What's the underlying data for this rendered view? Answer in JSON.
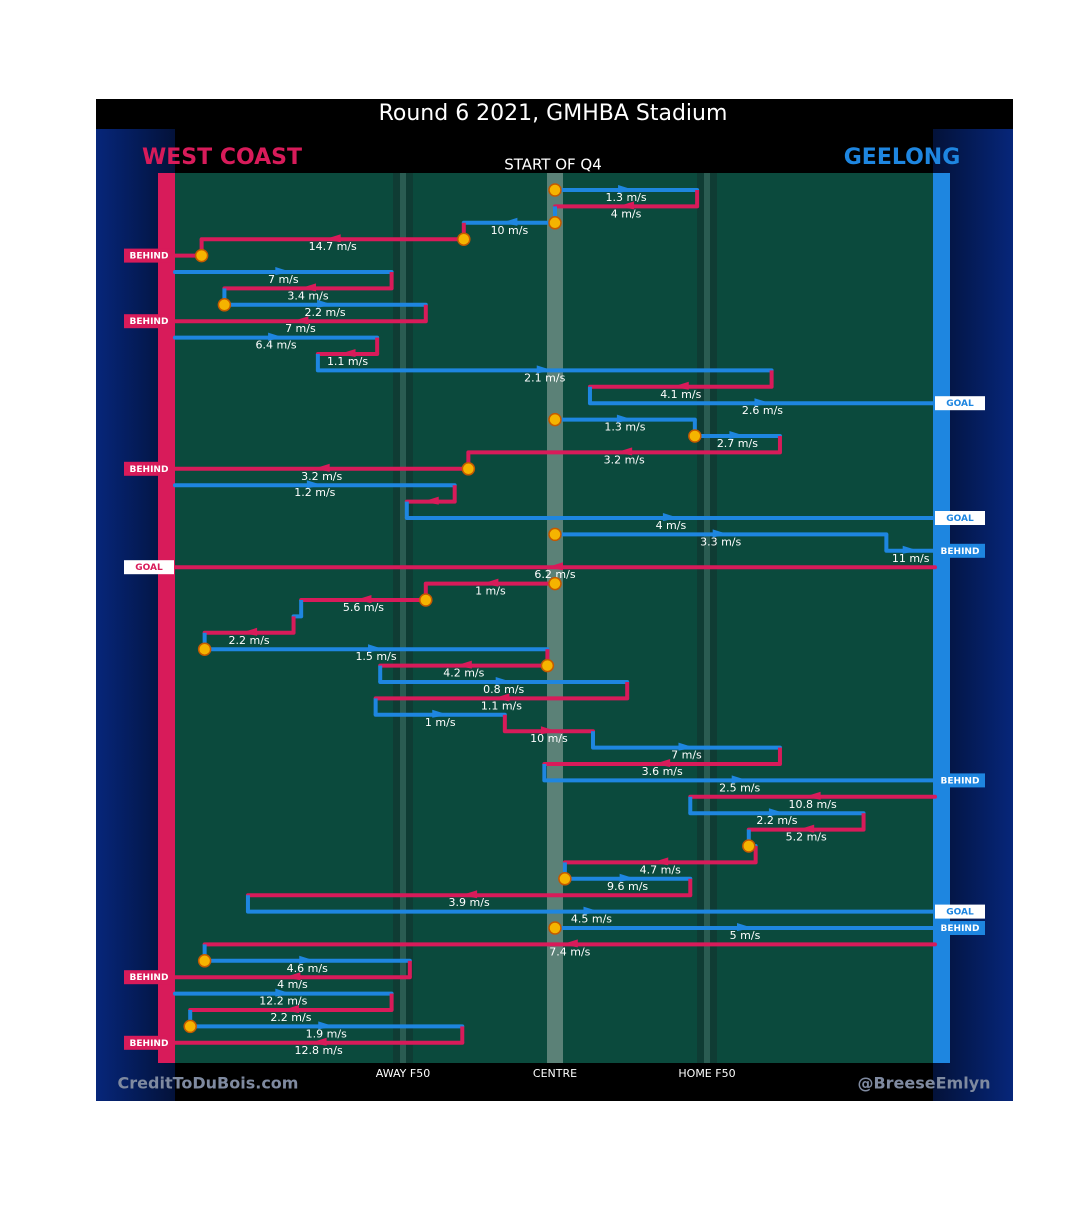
{
  "chart_data": {
    "type": "chain",
    "title": "Round 6 2021, GMHBA Stadium",
    "subtitle": "START OF Q4",
    "teams": [
      {
        "name": "WEST COAST",
        "color": "#d81b5a"
      },
      {
        "name": "GEELONG",
        "color": "#1e86e0"
      }
    ],
    "footer_left": "CreditToDuBois.com",
    "footer_right": "@BreeseEmlyn",
    "xlim": [
      0,
      100
    ],
    "xticks": [
      {
        "value": 30,
        "label": "AWAY F50"
      },
      {
        "value": 50,
        "label": "CENTRE"
      },
      {
        "value": 70,
        "label": "HOME F50"
      }
    ],
    "rows": [
      {
        "team": 1,
        "from": 50,
        "to": 68.7,
        "label": "1.3 m/s",
        "marker": true
      },
      {
        "team": 0,
        "from": 68.7,
        "to": 50,
        "label": "4 m/s"
      },
      {
        "team": 1,
        "from": 50,
        "to": 38,
        "label": "10 m/s",
        "marker": true
      },
      {
        "team": 0,
        "from": 38,
        "to": 3.5,
        "label": "14.7 m/s",
        "marker": true
      },
      {
        "team": 0,
        "from": 3.5,
        "to": 0,
        "outcome": "BEHIND",
        "marker": true
      },
      {
        "team": 1,
        "from": 0,
        "to": 28.5,
        "label": "7 m/s"
      },
      {
        "team": 0,
        "from": 28.5,
        "to": 6.5,
        "label": "3.4 m/s"
      },
      {
        "team": 1,
        "from": 6.5,
        "to": 33,
        "label": "2.2 m/s",
        "marker": true
      },
      {
        "team": 0,
        "from": 33,
        "to": 0,
        "label": "7 m/s",
        "outcome": "BEHIND"
      },
      {
        "team": 1,
        "from": 0,
        "to": 26.6,
        "label": "6.4 m/s"
      },
      {
        "team": 0,
        "from": 26.6,
        "to": 18.8,
        "label": "1.1 m/s"
      },
      {
        "team": 1,
        "from": 18.8,
        "to": 78.5,
        "label": "2.1 m/s"
      },
      {
        "team": 0,
        "from": 78.5,
        "to": 54.6,
        "label": "4.1 m/s"
      },
      {
        "team": 1,
        "from": 54.6,
        "to": 100,
        "label": "2.6 m/s",
        "outcome": "GOAL"
      },
      {
        "team": 1,
        "from": 50,
        "to": 68.4,
        "label": "1.3 m/s",
        "marker": true
      },
      {
        "team": 1,
        "from": 68.4,
        "to": 79.6,
        "label": "2.7 m/s",
        "marker": true
      },
      {
        "team": 0,
        "from": 79.6,
        "to": 38.6,
        "label": "3.2 m/s"
      },
      {
        "team": 0,
        "from": 38.6,
        "to": 0,
        "label": "3.2 m/s",
        "outcome": "BEHIND",
        "marker": true
      },
      {
        "team": 1,
        "from": 0,
        "to": 36.8,
        "label": "1.2 m/s"
      },
      {
        "team": 0,
        "from": 36.8,
        "to": 30.5
      },
      {
        "team": 1,
        "from": 30.5,
        "to": 100,
        "label": "4 m/s",
        "outcome": "GOAL"
      },
      {
        "team": 1,
        "from": 50,
        "to": 93.6,
        "label": "3.3 m/s",
        "marker": true
      },
      {
        "team": 1,
        "from": 93.6,
        "to": 100,
        "label": "11 m/s",
        "outcome": "BEHIND"
      },
      {
        "team": 0,
        "from": 100,
        "to": 0,
        "label": "6.2 m/s",
        "outcome": "GOAL"
      },
      {
        "team": 0,
        "from": 50,
        "to": 33,
        "label": "1 m/s",
        "marker": true
      },
      {
        "team": 0,
        "from": 33,
        "to": 16.6,
        "label": "5.6 m/s",
        "marker": true
      },
      {
        "team": 1,
        "from": 16.6,
        "to": 15.6
      },
      {
        "team": 0,
        "from": 15.6,
        "to": 3.9,
        "label": "2.2 m/s"
      },
      {
        "team": 1,
        "from": 3.9,
        "to": 49,
        "label": "1.5 m/s",
        "marker": true
      },
      {
        "team": 0,
        "from": 49,
        "to": 27,
        "label": "4.2 m/s",
        "marker": true
      },
      {
        "team": 1,
        "from": 27,
        "to": 59.5,
        "label": "0.8 m/s"
      },
      {
        "team": 0,
        "from": 59.5,
        "to": 26.4,
        "label": "1.1 m/s"
      },
      {
        "team": 1,
        "from": 26.4,
        "to": 43.4,
        "label": "1 m/s"
      },
      {
        "team": 0,
        "from": 43.4,
        "to": 55,
        "label": "10 m/s"
      },
      {
        "team": 1,
        "from": 55,
        "to": 79.6,
        "label": "7 m/s"
      },
      {
        "team": 0,
        "from": 79.6,
        "to": 48.6,
        "label": "3.6 m/s"
      },
      {
        "team": 1,
        "from": 48.6,
        "to": 100,
        "label": "2.5 m/s",
        "outcome": "BEHIND"
      },
      {
        "team": 0,
        "from": 100,
        "to": 67.8,
        "label": "10.8 m/s"
      },
      {
        "team": 1,
        "from": 67.8,
        "to": 90.6,
        "label": "2.2 m/s"
      },
      {
        "team": 0,
        "from": 90.6,
        "to": 75.5,
        "label": "5.2 m/s"
      },
      {
        "team": 1,
        "from": 75.5,
        "to": 76.4,
        "marker": true
      },
      {
        "team": 0,
        "from": 76.4,
        "to": 51.3,
        "label": "4.7 m/s"
      },
      {
        "team": 1,
        "from": 51.3,
        "to": 67.8,
        "label": "9.6 m/s",
        "marker": true
      },
      {
        "team": 0,
        "from": 67.8,
        "to": 9.6,
        "label": "3.9 m/s"
      },
      {
        "team": 1,
        "from": 9.6,
        "to": 100,
        "label": "4.5 m/s",
        "outcome": "GOAL"
      },
      {
        "team": 1,
        "from": 50,
        "to": 100,
        "label": "5 m/s",
        "outcome": "BEHIND",
        "marker": true
      },
      {
        "team": 0,
        "from": 100,
        "to": 3.9,
        "label": "7.4 m/s"
      },
      {
        "team": 1,
        "from": 3.9,
        "to": 30.9,
        "label": "4.6 m/s",
        "marker": true
      },
      {
        "team": 0,
        "from": 30.9,
        "to": 0,
        "label": "4 m/s",
        "outcome": "BEHIND"
      },
      {
        "team": 1,
        "from": 0,
        "to": 28.5,
        "label": "12.2 m/s"
      },
      {
        "team": 0,
        "from": 28.5,
        "to": 2,
        "label": "2.2 m/s"
      },
      {
        "team": 1,
        "from": 2,
        "to": 37.8,
        "label": "1.9 m/s",
        "marker": true
      },
      {
        "team": 0,
        "from": 37.8,
        "to": 0,
        "label": "12.8 m/s",
        "outcome": "BEHIND"
      }
    ]
  }
}
